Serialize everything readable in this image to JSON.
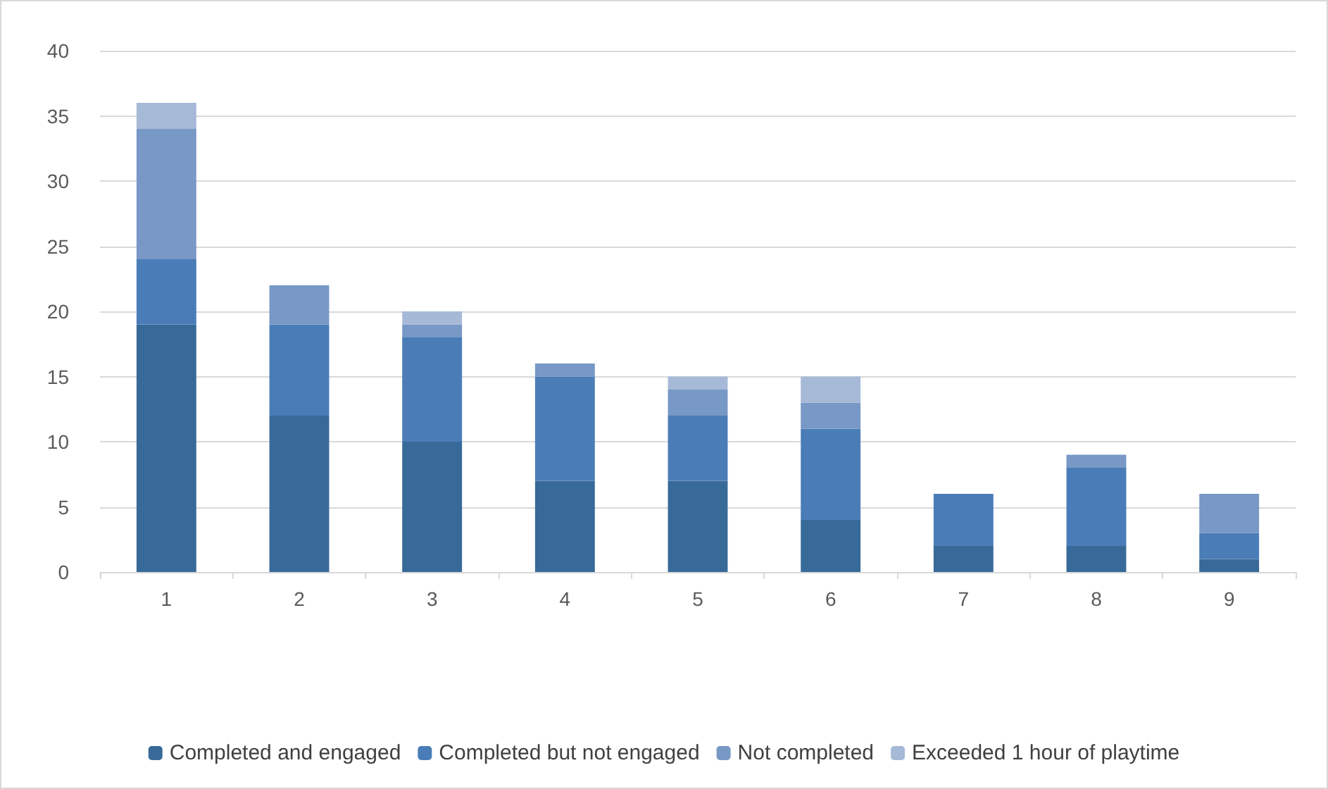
{
  "chart_data": {
    "type": "bar",
    "stacked": true,
    "categories": [
      "1",
      "2",
      "3",
      "4",
      "5",
      "6",
      "7",
      "8",
      "9"
    ],
    "series": [
      {
        "name": "Completed and engaged",
        "color": "#386a99",
        "values": [
          19,
          12,
          10,
          7,
          7,
          4,
          2,
          2,
          1
        ]
      },
      {
        "name": "Completed but not engaged",
        "color": "#4a7db8",
        "values": [
          5,
          7,
          8,
          8,
          5,
          7,
          4,
          6,
          2
        ]
      },
      {
        "name": "Not completed",
        "color": "#7898c6",
        "values": [
          10,
          3,
          1,
          1,
          2,
          2,
          0,
          1,
          3
        ]
      },
      {
        "name": "Exceeded 1 hour of playtime",
        "color": "#a6b9d7",
        "values": [
          2,
          0,
          1,
          0,
          1,
          2,
          0,
          0,
          0
        ]
      }
    ],
    "ylim": [
      0,
      40
    ],
    "yticks": [
      0,
      5,
      10,
      15,
      20,
      25,
      30,
      35,
      40
    ],
    "grid": "y",
    "legend": "bottom"
  }
}
